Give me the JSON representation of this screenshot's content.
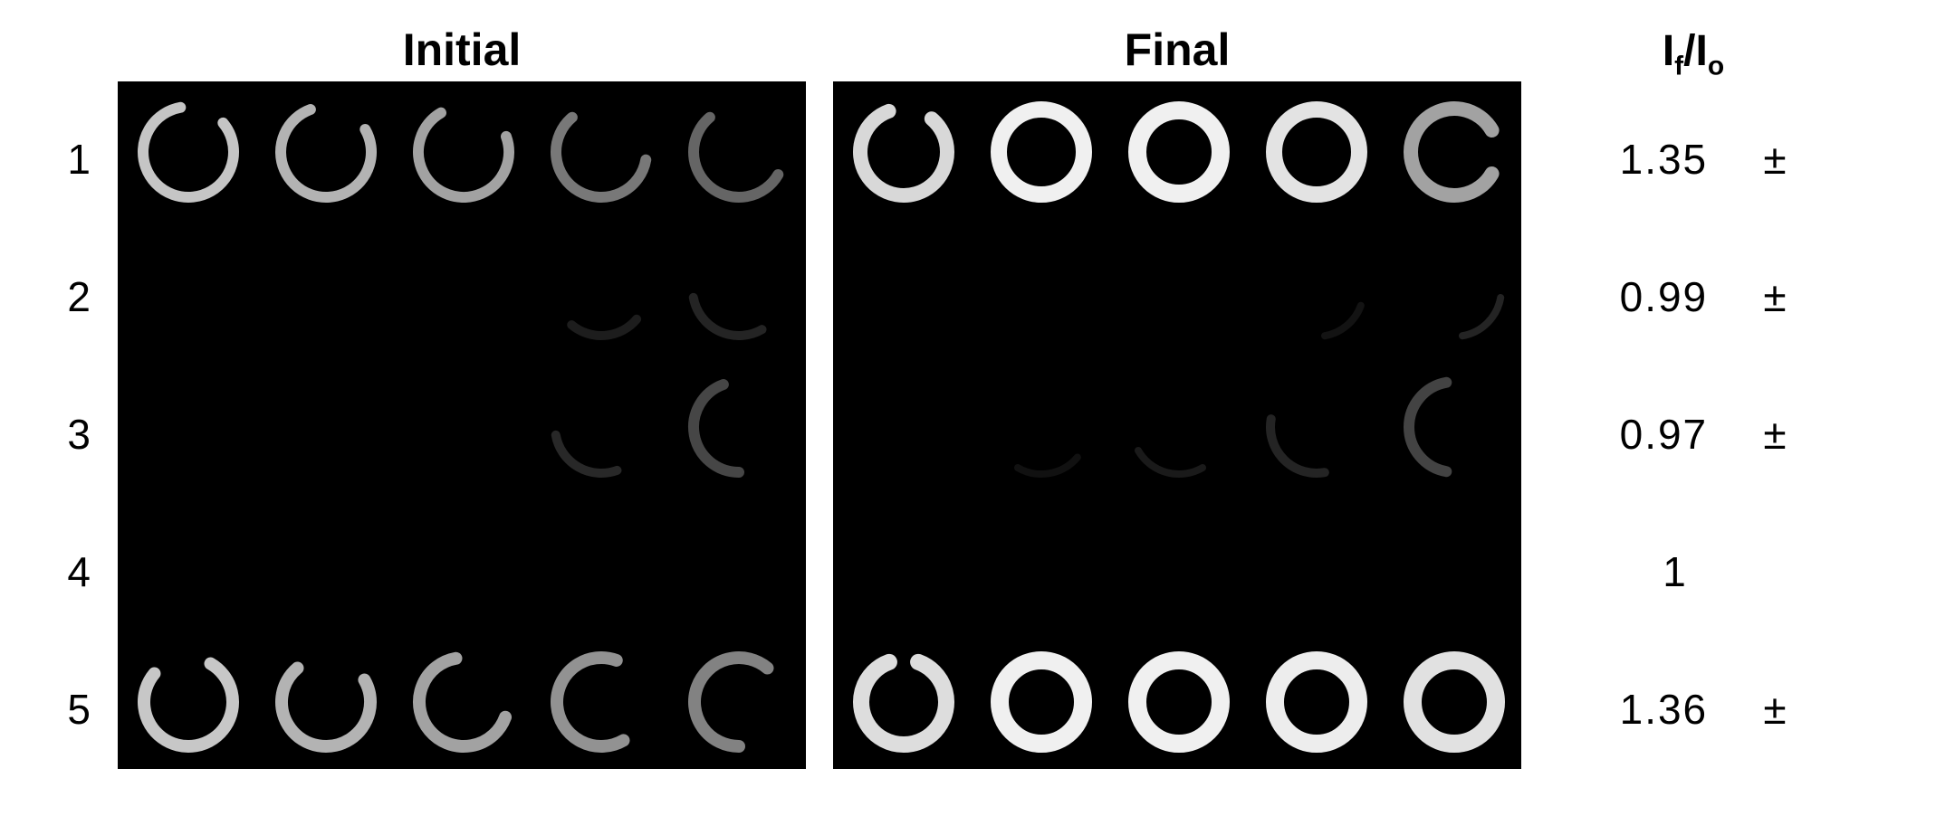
{
  "row_labels": [
    "1",
    "2",
    "3",
    "4",
    "5"
  ],
  "panels": {
    "initial": {
      "title": "Initial",
      "bg": "#000000",
      "grid": {
        "rows": 5,
        "cols": 5,
        "cell": 152,
        "offset_x": 0,
        "offset_y": 0,
        "ring_diam": 120
      },
      "rings": [
        {
          "r": 0,
          "c": 0,
          "opacity": 0.85,
          "thick": 12,
          "arc": 300,
          "rot": -40,
          "color": "#e8e8e8"
        },
        {
          "r": 0,
          "c": 1,
          "opacity": 0.8,
          "thick": 12,
          "arc": 280,
          "rot": -30,
          "color": "#e0e0e0"
        },
        {
          "r": 0,
          "c": 2,
          "opacity": 0.75,
          "thick": 12,
          "arc": 260,
          "rot": -20,
          "color": "#d8d8d8"
        },
        {
          "r": 0,
          "c": 3,
          "opacity": 0.6,
          "thick": 12,
          "arc": 220,
          "rot": 10,
          "color": "#c8c8c8"
        },
        {
          "r": 0,
          "c": 4,
          "opacity": 0.55,
          "thick": 12,
          "arc": 200,
          "rot": 30,
          "color": "#b8b8b8"
        },
        {
          "r": 1,
          "c": 3,
          "opacity": 0.2,
          "thick": 10,
          "arc": 90,
          "rot": 40,
          "color": "#909090"
        },
        {
          "r": 1,
          "c": 4,
          "opacity": 0.25,
          "thick": 10,
          "arc": 110,
          "rot": 60,
          "color": "#909090"
        },
        {
          "r": 2,
          "c": 3,
          "opacity": 0.25,
          "thick": 10,
          "arc": 100,
          "rot": 70,
          "color": "#a0a0a0"
        },
        {
          "r": 2,
          "c": 4,
          "opacity": 0.4,
          "thick": 12,
          "arc": 160,
          "rot": 90,
          "color": "#b0b0b0"
        },
        {
          "r": 4,
          "c": 0,
          "opacity": 0.85,
          "thick": 14,
          "arc": 280,
          "rot": -60,
          "color": "#eaeaea"
        },
        {
          "r": 4,
          "c": 1,
          "opacity": 0.8,
          "thick": 14,
          "arc": 260,
          "rot": -30,
          "color": "#e0e0e0"
        },
        {
          "r": 4,
          "c": 2,
          "opacity": 0.75,
          "thick": 14,
          "arc": 240,
          "rot": 20,
          "color": "#d8d8d8"
        },
        {
          "r": 4,
          "c": 3,
          "opacity": 0.7,
          "thick": 14,
          "arc": 230,
          "rot": 60,
          "color": "#d0d0d0"
        },
        {
          "r": 4,
          "c": 4,
          "opacity": 0.65,
          "thick": 14,
          "arc": 220,
          "rot": 90,
          "color": "#c8c8c8"
        }
      ]
    },
    "final": {
      "title": "Final",
      "bg": "#000000",
      "grid": {
        "rows": 5,
        "cols": 5,
        "cell": 152,
        "offset_x": 0,
        "offset_y": 0,
        "ring_diam": 120
      },
      "rings": [
        {
          "r": 0,
          "c": 0,
          "opacity": 0.9,
          "thick": 16,
          "arc": 300,
          "rot": -50,
          "color": "#f0f0f0"
        },
        {
          "r": 0,
          "c": 1,
          "opacity": 0.98,
          "thick": 18,
          "arc": 360,
          "rot": 0,
          "color": "#f5f5f5"
        },
        {
          "r": 0,
          "c": 2,
          "opacity": 0.98,
          "thick": 20,
          "arc": 360,
          "rot": 0,
          "color": "#f5f5f5"
        },
        {
          "r": 0,
          "c": 3,
          "opacity": 0.95,
          "thick": 18,
          "arc": 360,
          "rot": 0,
          "color": "#f0f0f0"
        },
        {
          "r": 0,
          "c": 4,
          "opacity": 0.75,
          "thick": 16,
          "arc": 300,
          "rot": 30,
          "color": "#d8d8d8"
        },
        {
          "r": 1,
          "c": 3,
          "opacity": 0.15,
          "thick": 8,
          "arc": 60,
          "rot": 20,
          "color": "#808080"
        },
        {
          "r": 1,
          "c": 4,
          "opacity": 0.25,
          "thick": 8,
          "arc": 70,
          "rot": 10,
          "color": "#909090"
        },
        {
          "r": 2,
          "c": 1,
          "opacity": 0.15,
          "thick": 8,
          "arc": 80,
          "rot": 40,
          "color": "#707070"
        },
        {
          "r": 2,
          "c": 2,
          "opacity": 0.2,
          "thick": 8,
          "arc": 90,
          "rot": 60,
          "color": "#808080"
        },
        {
          "r": 2,
          "c": 3,
          "opacity": 0.25,
          "thick": 10,
          "arc": 110,
          "rot": 80,
          "color": "#909090"
        },
        {
          "r": 2,
          "c": 4,
          "opacity": 0.4,
          "thick": 12,
          "arc": 160,
          "rot": 100,
          "color": "#a8a8a8"
        },
        {
          "r": 4,
          "c": 0,
          "opacity": 0.92,
          "thick": 18,
          "arc": 320,
          "rot": -70,
          "color": "#f0f0f0"
        },
        {
          "r": 4,
          "c": 1,
          "opacity": 0.98,
          "thick": 20,
          "arc": 360,
          "rot": 0,
          "color": "#f5f5f5"
        },
        {
          "r": 4,
          "c": 2,
          "opacity": 0.98,
          "thick": 20,
          "arc": 360,
          "rot": 0,
          "color": "#f5f5f5"
        },
        {
          "r": 4,
          "c": 3,
          "opacity": 0.98,
          "thick": 20,
          "arc": 360,
          "rot": 0,
          "color": "#f2f2f2"
        },
        {
          "r": 4,
          "c": 4,
          "opacity": 0.95,
          "thick": 20,
          "arc": 360,
          "rot": 0,
          "color": "#eeeeee"
        }
      ]
    }
  },
  "ratio_header": "I_f/I_o",
  "ratio_header_parts": {
    "base": "I",
    "sub1": "f",
    "mid": "/I",
    "sub2": "o"
  },
  "values": [
    {
      "num": "1.35",
      "pm": "±"
    },
    {
      "num": "0.99",
      "pm": "±"
    },
    {
      "num": "0.97",
      "pm": "±"
    },
    {
      "num": "1",
      "pm": ""
    },
    {
      "num": "1.36",
      "pm": "±"
    }
  ],
  "colors": {
    "page_bg": "#ffffff",
    "text": "#000000"
  }
}
